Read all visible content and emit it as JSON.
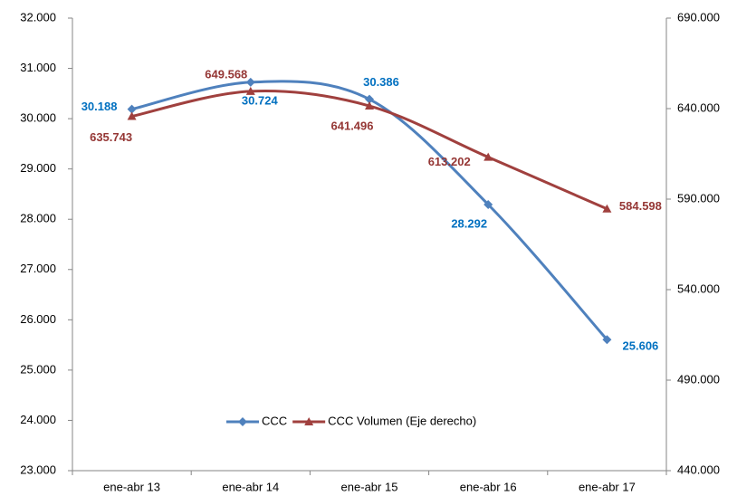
{
  "chart_data": {
    "type": "line",
    "categories": [
      "ene-abr 13",
      "ene-abr 14",
      "ene-abr 15",
      "ene-abr 16",
      "ene-abr 17"
    ],
    "series": [
      {
        "name": "CCC",
        "color": "#4f81bd",
        "label_color": "#0070c0",
        "marker": "diamond",
        "values": [
          30188,
          30724,
          30386,
          28292,
          25606
        ],
        "value_labels": [
          "30.188",
          "30.724",
          "30.386",
          "28.292",
          "25.606"
        ]
      },
      {
        "name": "CCC Volumen (Eje derecho)",
        "color": "#a0403e",
        "label_color": "#953735",
        "marker": "triangle",
        "axis": "y2",
        "values": [
          635743,
          649568,
          641496,
          613202,
          584598
        ],
        "value_labels": [
          "635.743",
          "649.568",
          "641.496",
          "613.202",
          "584.598"
        ]
      }
    ],
    "ylim": [
      23000,
      32000
    ],
    "yticks": [
      {
        "value": 23000,
        "label": "23.000"
      },
      {
        "value": 24000,
        "label": "24.000"
      },
      {
        "value": 25000,
        "label": "25.000"
      },
      {
        "value": 26000,
        "label": "26.000"
      },
      {
        "value": 27000,
        "label": "27.000"
      },
      {
        "value": 28000,
        "label": "28.000"
      },
      {
        "value": 29000,
        "label": "29.000"
      },
      {
        "value": 30000,
        "label": "30.000"
      },
      {
        "value": 31000,
        "label": "31.000"
      },
      {
        "value": 32000,
        "label": "32.000"
      }
    ],
    "y2lim": [
      440000,
      690000
    ],
    "y2ticks": [
      {
        "value": 440000,
        "label": "440.000"
      },
      {
        "value": 490000,
        "label": "490.000"
      },
      {
        "value": 540000,
        "label": "540.000"
      },
      {
        "value": 590000,
        "label": "590.000"
      },
      {
        "value": 640000,
        "label": "640.000"
      },
      {
        "value": 690000,
        "label": "690.000"
      }
    ],
    "legend": "bottom-center",
    "smooth": true
  }
}
